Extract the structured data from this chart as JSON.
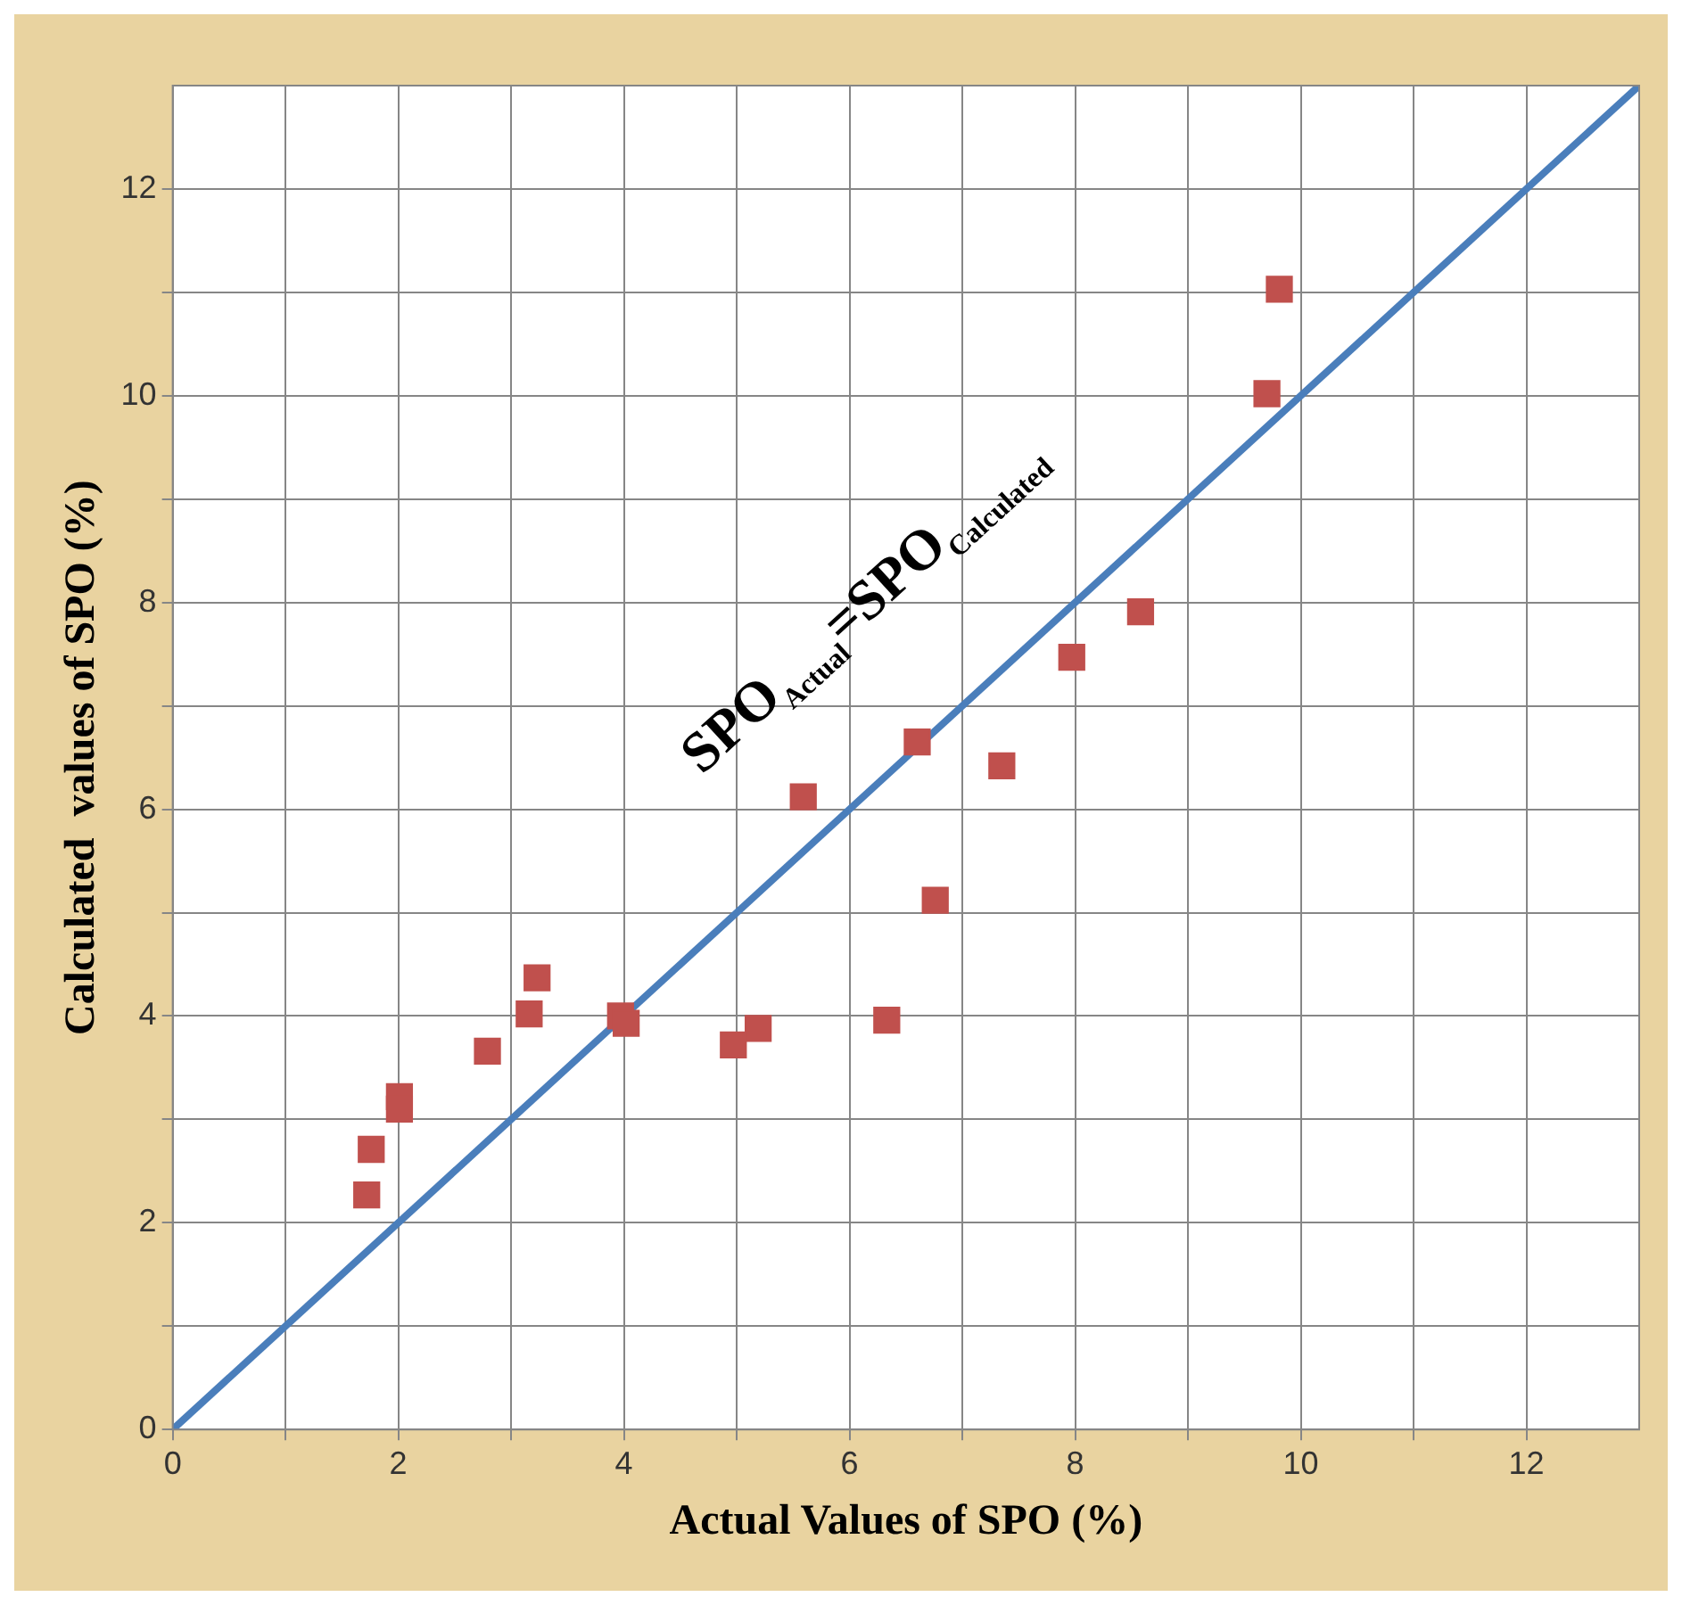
{
  "chart_data": {
    "type": "scatter",
    "xlabel": "Actual Values of SPO (%)",
    "ylabel": "Calculated  values of SPO (%)",
    "annotations": [
      "SPO$_{Actual}$=SPO$_{Calculated}$"
    ],
    "series": [
      {
        "type": "scatter",
        "color": "#c0504d",
        "marker": "square",
        "x": [
          1.76,
          1.72,
          2.01,
          2.01,
          2.79,
          3.16,
          3.23,
          3.97,
          4.02,
          4.97,
          5.19,
          5.59,
          6.33,
          6.6,
          6.76,
          7.35,
          7.97,
          8.58,
          9.7,
          9.81
        ],
        "values": [
          2.71,
          2.27,
          3.22,
          3.1,
          3.66,
          4.02,
          4.37,
          4.0,
          3.93,
          3.72,
          3.88,
          6.12,
          3.96,
          6.65,
          5.12,
          6.42,
          7.47,
          7.91,
          10.02,
          11.03
        ]
      },
      {
        "type": "line",
        "color": "#4a7ebb",
        "marker": "none",
        "x": [
          0,
          13
        ],
        "values": [
          0,
          13
        ]
      }
    ],
    "xlim": [
      0,
      13
    ],
    "ylim": [
      0,
      13
    ],
    "xticks": [
      0,
      {
        "value": 1,
        "label": null
      },
      2,
      {
        "value": 3,
        "label": null
      },
      4,
      {
        "value": 5,
        "label": null
      },
      6,
      {
        "value": 7,
        "label": null
      },
      8,
      {
        "value": 9,
        "label": null
      },
      10,
      {
        "value": 11,
        "label": null
      },
      12
    ],
    "yticks": [
      0,
      {
        "value": 1,
        "label": null
      },
      2,
      {
        "value": 3,
        "label": null
      },
      4,
      {
        "value": 5,
        "label": null
      },
      6,
      {
        "value": 7,
        "label": null
      },
      8,
      {
        "value": 9,
        "label": null
      },
      10,
      {
        "value": 11,
        "label": null
      },
      12
    ],
    "grid": true,
    "legend": false
  }
}
